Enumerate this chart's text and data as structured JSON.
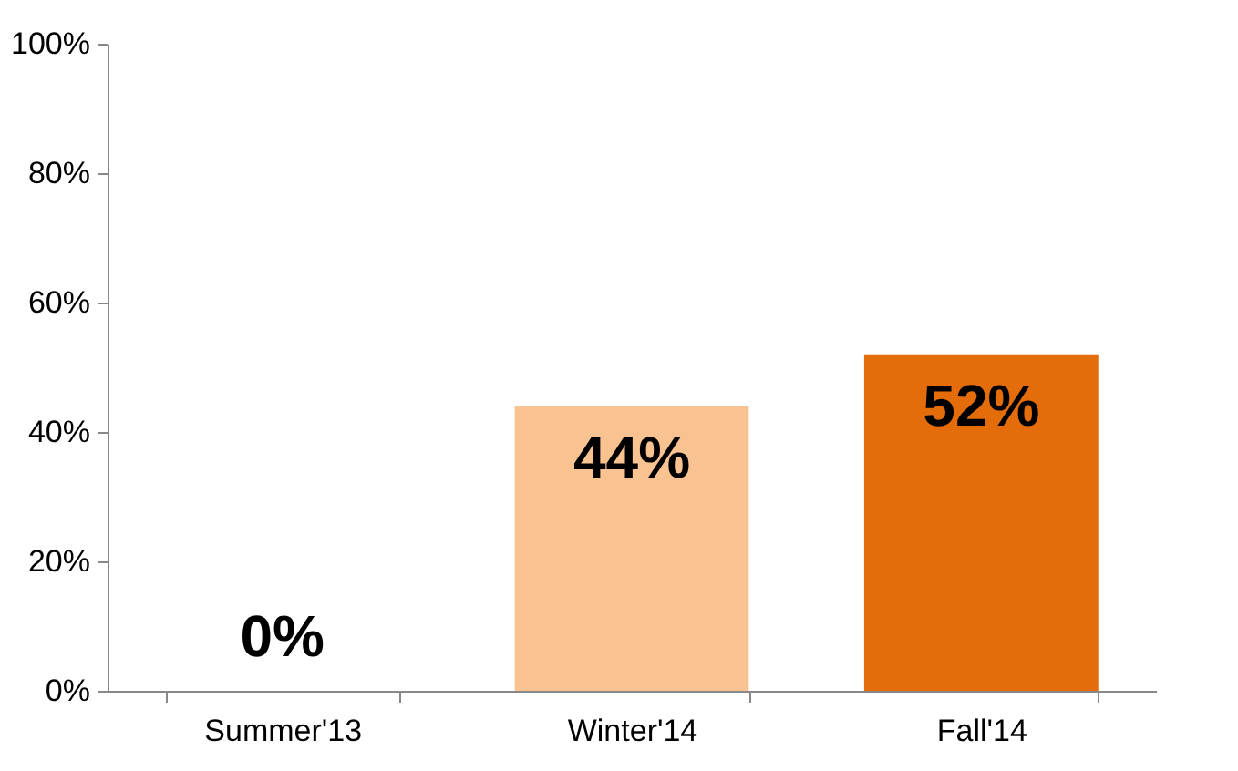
{
  "chart_data": {
    "type": "bar",
    "categories": [
      "Summer'13",
      "Winter'14",
      "Fall'14"
    ],
    "values": [
      0,
      44,
      52
    ],
    "colors": [
      "#f9c291",
      "#f9c291",
      "#e46c0a"
    ],
    "value_labels": [
      "0%",
      "44%",
      "52%"
    ],
    "ylim": [
      0,
      100
    ],
    "yticks": [
      {
        "value": 0,
        "label": "0%"
      },
      {
        "value": 20,
        "label": "20%"
      },
      {
        "value": 40,
        "label": "40%"
      },
      {
        "value": 60,
        "label": "60%"
      },
      {
        "value": 80,
        "label": "80%"
      },
      {
        "value": 100,
        "label": "100%"
      }
    ],
    "grid": false
  }
}
